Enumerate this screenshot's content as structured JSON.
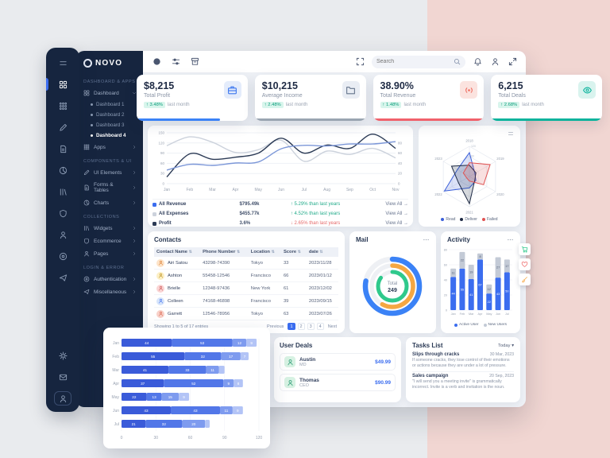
{
  "colors": {
    "accent_blue": "#3b6def",
    "sidebar_navy": "#16253f",
    "pink_band": "#f1d6d2",
    "page_bg": "#e9ebee",
    "green_badge_bg": "#d8f5ec",
    "green_badge_text": "#0a9d7b"
  },
  "rail": {
    "top": [
      {
        "icon": "menu",
        "name": "menu",
        "active": false
      },
      {
        "icon": "grid",
        "name": "dashboard",
        "active": true
      },
      {
        "icon": "apps",
        "name": "apps",
        "active": false
      },
      {
        "icon": "pencil",
        "name": "ui-elements",
        "active": false
      },
      {
        "icon": "file",
        "name": "forms-tables",
        "active": false
      },
      {
        "icon": "pie",
        "name": "charts",
        "active": false
      },
      {
        "icon": "books",
        "name": "widgets",
        "active": false
      },
      {
        "icon": "shield",
        "name": "ecommerce",
        "active": false
      },
      {
        "icon": "user",
        "name": "pages",
        "active": false
      },
      {
        "icon": "ring",
        "name": "authentication",
        "active": false
      },
      {
        "icon": "send",
        "name": "miscellaneous",
        "active": false
      }
    ],
    "bottom": [
      {
        "icon": "gear",
        "name": "settings"
      },
      {
        "icon": "envelope",
        "name": "messages"
      },
      {
        "icon": "user",
        "name": "profile",
        "framed": true
      }
    ]
  },
  "sidebar": {
    "logo": "NOVO",
    "sections": [
      {
        "label": "DASHBOARD & APPS",
        "items": [
          {
            "label": "Dashboard",
            "icon": "grid",
            "caret": true,
            "expanded": true,
            "children": [
              {
                "label": "Dashboard 1",
                "active": false
              },
              {
                "label": "Dashboard 2",
                "active": false
              },
              {
                "label": "Dashboard 3",
                "active": false
              },
              {
                "label": "Dashboard 4",
                "active": true
              }
            ]
          },
          {
            "label": "Apps",
            "icon": "apps",
            "caret": true
          }
        ]
      },
      {
        "label": "COMPONENTS & UI",
        "items": [
          {
            "label": "UI Elements",
            "icon": "pencil",
            "caret": true
          },
          {
            "label": "Forms & Tables",
            "icon": "file",
            "caret": true
          },
          {
            "label": "Charts",
            "icon": "pie",
            "caret": true
          }
        ]
      },
      {
        "label": "COLLECTIONS",
        "items": [
          {
            "label": "Widgets",
            "icon": "books",
            "caret": true
          },
          {
            "label": "Ecommerce",
            "icon": "shield",
            "caret": true
          },
          {
            "label": "Pages",
            "icon": "user",
            "caret": true
          }
        ]
      },
      {
        "label": "LOGIN & ERROR",
        "items": [
          {
            "label": "Authentication",
            "icon": "ring",
            "caret": true
          },
          {
            "label": "Miscellaneous",
            "icon": "send",
            "caret": true
          }
        ]
      }
    ]
  },
  "topbar": {
    "search_placeholder": "Search",
    "left_icons": [
      {
        "icon": "moon",
        "name": "theme-toggle"
      },
      {
        "icon": "sliders",
        "name": "layout-toggle"
      },
      {
        "icon": "archive",
        "name": "apps-drawer"
      }
    ],
    "right_icons_before_search": [
      {
        "icon": "fullscreen",
        "name": "fullscreen"
      }
    ],
    "right_icons_after_search": [
      {
        "icon": "bell",
        "name": "notifications"
      },
      {
        "icon": "user",
        "name": "account"
      },
      {
        "icon": "expand",
        "name": "expand-window"
      }
    ]
  },
  "kpis": [
    {
      "value": "$8,215",
      "label": "Total Profit",
      "badge": "↑ 3.48%",
      "suffix": "last month",
      "icon": "briefcase",
      "icon_bg": "#e4ecfb",
      "icon_color": "#3b76ef",
      "bar_color": "#3b82f6",
      "bar_pct": 75
    },
    {
      "value": "$10,215",
      "label": "Average Income",
      "badge": "↑ 2.48%",
      "suffix": "last month",
      "icon": "folder",
      "icon_bg": "#e9edf4",
      "icon_color": "#64748b",
      "bar_color": "#9aa5b1",
      "bar_pct": 100
    },
    {
      "value": "38.90%",
      "label": "Total Revenue",
      "badge": "↑ 1.48%",
      "suffix": "last month",
      "icon": "signal",
      "icon_bg": "#fbe3df",
      "icon_color": "#ef6b5e",
      "bar_color": "#f0616b",
      "bar_pct": 100
    },
    {
      "value": "6,215",
      "label": "Total Deals",
      "badge": "↑ 2.68%",
      "suffix": "last month",
      "icon": "eye",
      "icon_bg": "#d9f3ee",
      "icon_color": "#0ab39c",
      "bar_color": "#0ab39c",
      "bar_pct": 100
    }
  ],
  "chart_data": [
    {
      "id": "revenue_overview",
      "type": "line",
      "x": [
        "Jan",
        "Feb",
        "Mar",
        "Apr",
        "May",
        "Jun",
        "Jul",
        "Aug",
        "Sep",
        "Oct",
        "Nov"
      ],
      "ylim": [
        0,
        150
      ],
      "yticks_left": [
        0,
        30,
        60,
        90,
        120,
        150
      ],
      "yticks_right": [
        0,
        20,
        40,
        60,
        80
      ],
      "grid": true,
      "legend_position": "bottom-table",
      "series": [
        {
          "name": "All Expenses",
          "color": "#ccd2dc",
          "values": [
            112,
            138,
            122,
            92,
            100,
            128,
            66,
            96,
            86,
            104,
            76
          ]
        },
        {
          "name": "All Revenue",
          "color": "#2b3a55",
          "values": [
            20,
            88,
            72,
            78,
            90,
            134,
            90,
            114,
            104,
            146,
            104
          ]
        },
        {
          "name": "Profit",
          "color": "#7c97d8",
          "values": [
            40,
            57,
            54,
            61,
            64,
            103,
            113,
            111,
            117,
            117,
            124
          ]
        }
      ],
      "summary": [
        {
          "name": "All Revenue",
          "dot": "#3b6def",
          "value": "$795.49k",
          "delta": "↑ 5.29% than last years",
          "direction": "up",
          "link": "View All →"
        },
        {
          "name": "All Expenses",
          "dot": "#ccd2dc",
          "value": "$455.77k",
          "delta": "↑ 4.52% than last years",
          "direction": "up",
          "link": "View All →"
        },
        {
          "name": "Profit",
          "dot": "#2b3a55",
          "value": "3.6%",
          "delta": "↓ 2.65% than last years",
          "direction": "down",
          "link": "View All →"
        }
      ]
    },
    {
      "id": "yearly_radar",
      "type": "radar",
      "categories": [
        "2018",
        "2019",
        "2020",
        "2021",
        "2022",
        "2023"
      ],
      "max": 120,
      "ticks": [
        0,
        40,
        80,
        120
      ],
      "legend_position": "bottom",
      "series": [
        {
          "name": "Read",
          "color": "#3b5fd9",
          "values": [
            95,
            25,
            30,
            45,
            115,
            55
          ]
        },
        {
          "name": "Deliver",
          "color": "#1e2a44",
          "values": [
            45,
            30,
            25,
            108,
            50,
            82
          ]
        },
        {
          "name": "Failed",
          "color": "#e05252",
          "values": [
            55,
            95,
            65,
            18,
            12,
            28
          ]
        }
      ]
    },
    {
      "id": "mail_radial",
      "type": "pie",
      "style": "radial-bar",
      "total_label": "Total",
      "total": 249,
      "series": [
        {
          "color": "#3b82f6",
          "percent": 78
        },
        {
          "color": "#f5a742",
          "percent": 58
        },
        {
          "color": "#2fc98c",
          "percent": 85
        }
      ]
    },
    {
      "id": "activity_columns",
      "type": "bar",
      "stacked": true,
      "categories": [
        "Jan",
        "Feb",
        "Mar",
        "Apr",
        "May",
        "Jun",
        "Jul"
      ],
      "ylim": [
        0,
        80
      ],
      "yticks": [
        0,
        20,
        40,
        60,
        80
      ],
      "legend_position": "bottom",
      "series": [
        {
          "name": "Active User",
          "color": "#3b6def",
          "values": [
            44,
            55,
            41,
            67,
            22,
            43,
            50
          ]
        },
        {
          "name": "New Users",
          "color": "#c3cad6",
          "values": [
            11,
            22,
            19,
            8,
            12,
            27,
            17
          ]
        }
      ]
    },
    {
      "id": "monthly_breakdown",
      "type": "bar",
      "stacked": true,
      "orientation": "horizontal",
      "categories": [
        "Jan",
        "Feb",
        "Mar",
        "Apr",
        "May",
        "Jun",
        "Jul"
      ],
      "xlim": [
        0,
        120
      ],
      "xticks": [
        0,
        30,
        60,
        90,
        120
      ],
      "series": [
        {
          "color": "#3a5bd9",
          "values": [
            44,
            55,
            41,
            37,
            22,
            43,
            21
          ]
        },
        {
          "color": "#5277e8",
          "values": [
            53,
            32,
            33,
            52,
            13,
            43,
            32
          ]
        },
        {
          "color": "#7e9bef",
          "values": [
            12,
            17,
            11,
            9,
            15,
            11,
            20
          ]
        },
        {
          "color": "#b3c4f6",
          "values": [
            9,
            7,
            5,
            8,
            9,
            9,
            4
          ]
        }
      ]
    }
  ],
  "contacts": {
    "title": "Contacts",
    "headers": [
      "Contact Name",
      "Phone Number",
      "Location",
      "Score",
      "date"
    ],
    "rows": [
      {
        "name": "Airi Satou",
        "phone": "43298-74390",
        "location": "Tokyo",
        "score": "33",
        "date": "2023/11/28",
        "avatar_bg": "#fde3c8",
        "avatar_color": "#d97a2b"
      },
      {
        "name": "Ashton",
        "phone": "55458-12546",
        "location": "Francisco",
        "score": "66",
        "date": "2023/01/12",
        "avatar_bg": "#fcefc4",
        "avatar_color": "#b98a12"
      },
      {
        "name": "Brielle",
        "phone": "12348-97436",
        "location": "New York",
        "score": "61",
        "date": "2023/12/02",
        "avatar_bg": "#fad4d4",
        "avatar_color": "#c94f4f"
      },
      {
        "name": "Colleen",
        "phone": "74168-46898",
        "location": "Francisco",
        "score": "39",
        "date": "2023/09/15",
        "avatar_bg": "#d6e4fb",
        "avatar_color": "#3b6def"
      },
      {
        "name": "Garrett",
        "phone": "12546-78956",
        "location": "Tokyo",
        "score": "63",
        "date": "2023/07/26",
        "avatar_bg": "#f8d0c8",
        "avatar_color": "#d96048"
      }
    ],
    "footer": "Showing 1 to 5 of 17 entries",
    "pagination": {
      "items": [
        "Previous",
        "1",
        "2",
        "3",
        "4",
        "Next"
      ],
      "active": "1"
    }
  },
  "mail": {
    "title": "Mail"
  },
  "activity": {
    "title": "Activity"
  },
  "deals": {
    "title": "User Deals",
    "items": [
      {
        "name": "Austin",
        "role": "MD",
        "amount": "$49.99"
      },
      {
        "name": "Thomas",
        "role": "CEO",
        "amount": "$90.99"
      }
    ]
  },
  "tasks": {
    "title": "Tasks List",
    "filter_label": "Today ▾",
    "items": [
      {
        "title": "Slips through cracks",
        "date": "30 Mar, 2023",
        "desc": "If someone cracks, they lose control of their emotions or actions because they are under a lot of pressure."
      },
      {
        "title": "Sales campaign",
        "date": "20 Sep, 2023",
        "desc": "\"I will send you a meeting invite\" is grammatically incorrect. Invite is a verb and invitation is the noun."
      }
    ]
  },
  "edge_actions": [
    {
      "icon": "cart",
      "name": "buy-now",
      "color": "#2fc98c"
    },
    {
      "icon": "heart",
      "name": "favorites",
      "color": "#ef6b6b"
    },
    {
      "icon": "brush",
      "name": "customizer",
      "color": "#f5a742"
    }
  ]
}
